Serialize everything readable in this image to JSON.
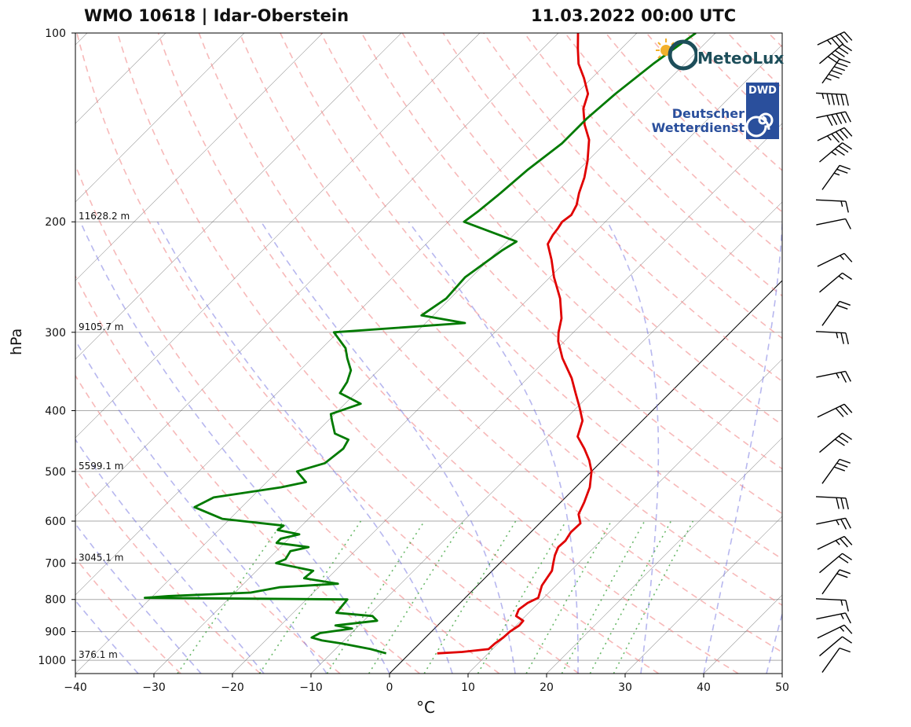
{
  "header": {
    "title_left": "WMO 10618 | Idar-Oberstein",
    "title_right": "11.03.2022 00:00 UTC"
  },
  "logos": {
    "meteolux": "MeteoLux",
    "dwd_tag": "DWD",
    "dwd_line1": "Deutscher",
    "dwd_line2": "Wetterdienst"
  },
  "colors": {
    "temperature": "#e00000",
    "dewpoint": "#007a00",
    "dry_adiabat": "#f08080",
    "moist_adiabat": "#7070e0",
    "mixing_ratio": "#2a9a2a",
    "isotherm": "#555555",
    "grid": "#aaaaaa"
  },
  "chart_data": {
    "type": "skew-t log-p",
    "xlabel": "°C",
    "ylabel": "hPa",
    "xlim": [
      -40,
      50
    ],
    "ylim": [
      1050,
      100
    ],
    "x_ticks": [
      -40,
      -30,
      -20,
      -10,
      0,
      10,
      20,
      30,
      40,
      50
    ],
    "x_tick_labels": [
      "−40",
      "−30",
      "−20",
      "−10",
      "0",
      "10",
      "20",
      "30",
      "40",
      "50"
    ],
    "y_ticks": [
      100,
      200,
      300,
      400,
      500,
      600,
      700,
      800,
      900,
      1000
    ],
    "y_tick_labels": [
      "100",
      "200",
      "300",
      "400",
      "500",
      "600",
      "700",
      "800",
      "900",
      "1000"
    ],
    "height_labels": [
      {
        "p": 200,
        "text": "11628.2 m"
      },
      {
        "p": 300,
        "text": "9105.7 m"
      },
      {
        "p": 500,
        "text": "5599.1 m"
      },
      {
        "p": 700,
        "text": "3045.1 m"
      },
      {
        "p": 1000,
        "text": "376.1 m"
      }
    ],
    "series": [
      {
        "name": "Temperature",
        "color": "#e00000",
        "points": [
          [
            975,
            3.5
          ],
          [
            970,
            6.5
          ],
          [
            960,
            9.5
          ],
          [
            940,
            9.6
          ],
          [
            920,
            9.9
          ],
          [
            900,
            10.0
          ],
          [
            880,
            10.4
          ],
          [
            865,
            10.3
          ],
          [
            850,
            8.8
          ],
          [
            830,
            8.3
          ],
          [
            810,
            8.6
          ],
          [
            795,
            9.3
          ],
          [
            760,
            8.2
          ],
          [
            720,
            7.6
          ],
          [
            700,
            6.8
          ],
          [
            680,
            6.0
          ],
          [
            660,
            5.4
          ],
          [
            645,
            5.5
          ],
          [
            625,
            5.1
          ],
          [
            605,
            5.2
          ],
          [
            585,
            3.8
          ],
          [
            560,
            3.0
          ],
          [
            530,
            1.8
          ],
          [
            500,
            0.0
          ],
          [
            480,
            -1.7
          ],
          [
            460,
            -3.8
          ],
          [
            440,
            -6.2
          ],
          [
            415,
            -7.6
          ],
          [
            395,
            -9.7
          ],
          [
            375,
            -12.0
          ],
          [
            355,
            -14.4
          ],
          [
            330,
            -18.1
          ],
          [
            310,
            -20.8
          ],
          [
            300,
            -21.9
          ],
          [
            285,
            -23.3
          ],
          [
            265,
            -26.0
          ],
          [
            245,
            -29.5
          ],
          [
            230,
            -32.0
          ],
          [
            217,
            -34.5
          ],
          [
            210,
            -35.0
          ],
          [
            205,
            -35.2
          ],
          [
            200,
            -35.5
          ],
          [
            195,
            -35.2
          ],
          [
            188,
            -35.8
          ],
          [
            180,
            -37.0
          ],
          [
            170,
            -38.3
          ],
          [
            160,
            -40.0
          ],
          [
            148,
            -42.5
          ],
          [
            140,
            -45.0
          ],
          [
            132,
            -47.2
          ],
          [
            125,
            -48.5
          ],
          [
            118,
            -51.0
          ],
          [
            112,
            -53.5
          ],
          [
            106,
            -55.5
          ],
          [
            100,
            -57.5
          ]
        ]
      },
      {
        "name": "Dewpoint",
        "color": "#007a00",
        "points": [
          [
            975,
            -3.0
          ],
          [
            960,
            -5.5
          ],
          [
            940,
            -10.0
          ],
          [
            930,
            -12.8
          ],
          [
            920,
            -14.5
          ],
          [
            905,
            -14.0
          ],
          [
            890,
            -10.5
          ],
          [
            880,
            -13.0
          ],
          [
            865,
            -8.3
          ],
          [
            850,
            -9.5
          ],
          [
            840,
            -14.5
          ],
          [
            800,
            -14.8
          ],
          [
            795,
            -40.8
          ],
          [
            790,
            -38.0
          ],
          [
            780,
            -28.0
          ],
          [
            765,
            -25.0
          ],
          [
            755,
            -18.0
          ],
          [
            740,
            -23.0
          ],
          [
            720,
            -22.8
          ],
          [
            700,
            -28.5
          ],
          [
            690,
            -27.8
          ],
          [
            670,
            -28.2
          ],
          [
            660,
            -26.4
          ],
          [
            650,
            -31.0
          ],
          [
            640,
            -31.0
          ],
          [
            630,
            -29.2
          ],
          [
            620,
            -32.5
          ],
          [
            610,
            -32.3
          ],
          [
            595,
            -41.0
          ],
          [
            570,
            -46.0
          ],
          [
            550,
            -44.8
          ],
          [
            530,
            -37.5
          ],
          [
            520,
            -35.0
          ],
          [
            500,
            -37.5
          ],
          [
            485,
            -35.0
          ],
          [
            460,
            -34.5
          ],
          [
            445,
            -35.0
          ],
          [
            435,
            -37.5
          ],
          [
            415,
            -39.5
          ],
          [
            405,
            -40.5
          ],
          [
            390,
            -38.0
          ],
          [
            375,
            -42.0
          ],
          [
            360,
            -42.5
          ],
          [
            345,
            -43.5
          ],
          [
            330,
            -45.5
          ],
          [
            318,
            -47.0
          ],
          [
            300,
            -50.5
          ],
          [
            290,
            -35.0
          ],
          [
            282,
            -41.5
          ],
          [
            265,
            -40.5
          ],
          [
            245,
            -40.8
          ],
          [
            222,
            -39.5
          ],
          [
            215,
            -38.8
          ],
          [
            200,
            -48.0
          ],
          [
            192,
            -47.5
          ],
          [
            180,
            -47.0
          ],
          [
            165,
            -46.5
          ],
          [
            150,
            -45.5
          ],
          [
            137,
            -45.5
          ],
          [
            125,
            -45.0
          ],
          [
            112,
            -44.0
          ],
          [
            100,
            -42.5
          ]
        ]
      }
    ],
    "wind_profile": [
      {
        "p": 1000,
        "speed_kt": 10
      },
      {
        "p": 950,
        "speed_kt": 10
      },
      {
        "p": 900,
        "speed_kt": 15
      },
      {
        "p": 850,
        "speed_kt": 15
      },
      {
        "p": 800,
        "speed_kt": 15
      },
      {
        "p": 750,
        "speed_kt": 20
      },
      {
        "p": 700,
        "speed_kt": 20
      },
      {
        "p": 650,
        "speed_kt": 25
      },
      {
        "p": 600,
        "speed_kt": 25
      },
      {
        "p": 550,
        "speed_kt": 30
      },
      {
        "p": 500,
        "speed_kt": 30
      },
      {
        "p": 450,
        "speed_kt": 30
      },
      {
        "p": 400,
        "speed_kt": 30
      },
      {
        "p": 350,
        "speed_kt": 25
      },
      {
        "p": 300,
        "speed_kt": 25
      },
      {
        "p": 280,
        "speed_kt": 20
      },
      {
        "p": 250,
        "speed_kt": 15
      },
      {
        "p": 230,
        "speed_kt": 15
      },
      {
        "p": 200,
        "speed_kt": 10
      },
      {
        "p": 185,
        "speed_kt": 15
      },
      {
        "p": 170,
        "speed_kt": 25
      },
      {
        "p": 155,
        "speed_kt": 35
      },
      {
        "p": 145,
        "speed_kt": 45
      },
      {
        "p": 135,
        "speed_kt": 50
      },
      {
        "p": 125,
        "speed_kt": 55
      },
      {
        "p": 115,
        "speed_kt": 55
      },
      {
        "p": 108,
        "speed_kt": 50
      },
      {
        "p": 102,
        "speed_kt": 45
      }
    ]
  }
}
